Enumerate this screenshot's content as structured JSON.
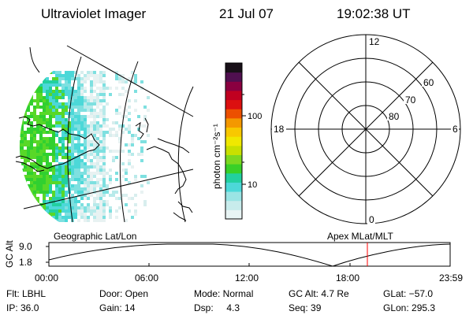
{
  "header": {
    "title": "Ultraviolet Imager",
    "date": "21 Jul 07",
    "time": "19:02:38 UT"
  },
  "colorbar": {
    "label": "photon cm⁻²s⁻¹",
    "ticks": [
      "100",
      "10"
    ],
    "colors": [
      "#e8f4f4",
      "#c8ecec",
      "#9ae4e4",
      "#4cd8d8",
      "#22d0a0",
      "#38d028",
      "#7cd820",
      "#c8e000",
      "#f0e800",
      "#f8c800",
      "#f49800",
      "#ec5000",
      "#dc1010",
      "#c00020",
      "#8a0040",
      "#501050",
      "#181018"
    ]
  },
  "polar": {
    "mlt_labels": {
      "top": "12",
      "left": "18",
      "right": "6",
      "bottom": "0"
    },
    "lat_labels": [
      "60",
      "70",
      "80"
    ]
  },
  "timeline": {
    "left_label": "Geographic Lat/Lon",
    "right_label": "Apex MLat/MLT",
    "axis_title": "GC Alt",
    "ymax": "9.0",
    "ymin": "1.8",
    "xticks": [
      "00:00",
      "06:00",
      "12:00",
      "18:00",
      "23:59"
    ],
    "marker_color": "#ff0000"
  },
  "info": {
    "flt": "Flt: LBHL",
    "ip": "IP: 36.0",
    "door": "Door: Open",
    "gain": "Gain: 14",
    "mode": "Mode: Normal",
    "dsp": "Dsp:     4.3",
    "gcalt": "GC Alt: 4.7 Re",
    "seq": "Seq: 39",
    "glat": "GLat: −57.0",
    "glon": "GLon: 295.3"
  }
}
